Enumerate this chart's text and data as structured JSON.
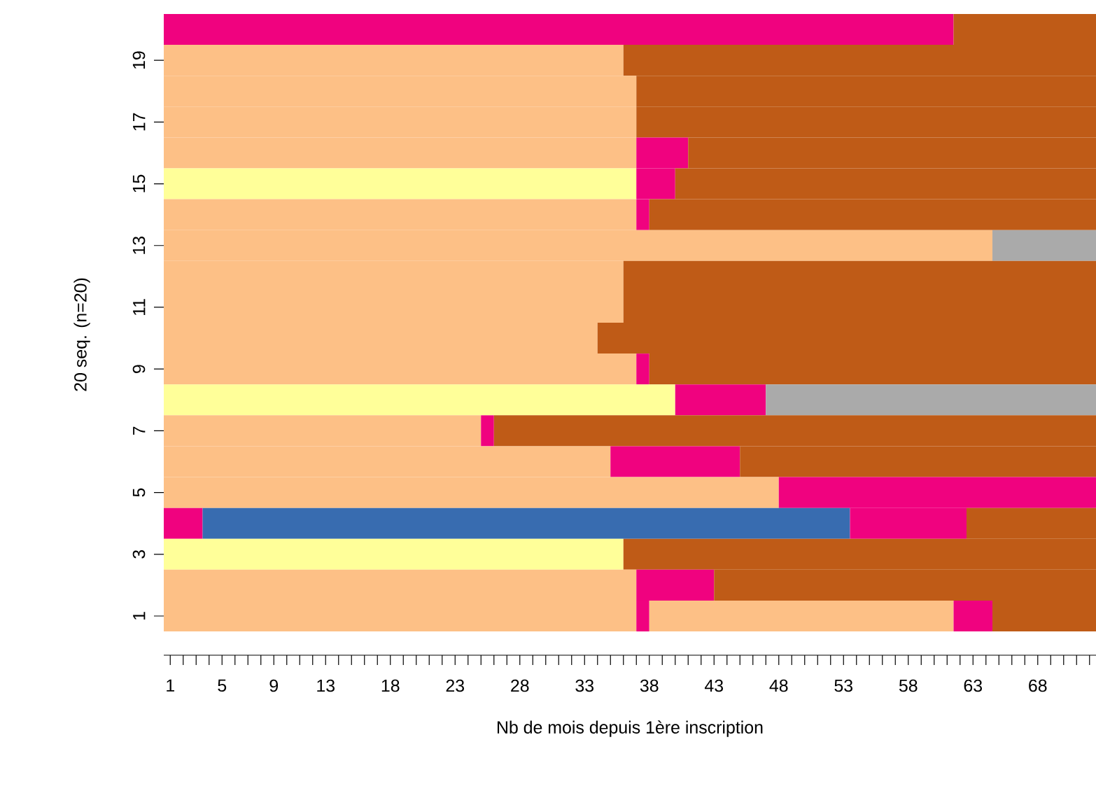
{
  "chart_data": {
    "type": "bar",
    "orientation": "horizontal",
    "stacked": true,
    "xlabel": "Nb de mois depuis 1ère inscription",
    "ylabel": "20 seq. (n=20)",
    "categories": [
      null,
      "19",
      null,
      "17",
      null,
      "15",
      null,
      "13",
      null,
      "11",
      null,
      "9",
      null,
      "7",
      null,
      "5",
      null,
      "3",
      null,
      "1"
    ],
    "xlim": [
      0,
      72
    ],
    "xticks": [
      {
        "value": 0.5,
        "label": "1"
      },
      {
        "value": 1.5,
        "label": null
      },
      {
        "value": 2.5,
        "label": null
      },
      {
        "value": 3.5,
        "label": null
      },
      {
        "value": 4.5,
        "label": "5"
      },
      {
        "value": 5.5,
        "label": null
      },
      {
        "value": 6.5,
        "label": null
      },
      {
        "value": 7.5,
        "label": null
      },
      {
        "value": 8.5,
        "label": "9"
      },
      {
        "value": 9.5,
        "label": null
      },
      {
        "value": 10.5,
        "label": null
      },
      {
        "value": 11.5,
        "label": null
      },
      {
        "value": 12.5,
        "label": "13"
      },
      {
        "value": 13.5,
        "label": null
      },
      {
        "value": 14.5,
        "label": null
      },
      {
        "value": 15.5,
        "label": null
      },
      {
        "value": 16.5,
        "label": null
      },
      {
        "value": 17.5,
        "label": "18"
      },
      {
        "value": 18.5,
        "label": null
      },
      {
        "value": 19.5,
        "label": null
      },
      {
        "value": 20.5,
        "label": null
      },
      {
        "value": 21.5,
        "label": null
      },
      {
        "value": 22.5,
        "label": "23"
      },
      {
        "value": 23.5,
        "label": null
      },
      {
        "value": 24.5,
        "label": null
      },
      {
        "value": 25.5,
        "label": null
      },
      {
        "value": 26.5,
        "label": null
      },
      {
        "value": 27.5,
        "label": "28"
      },
      {
        "value": 28.5,
        "label": null
      },
      {
        "value": 29.5,
        "label": null
      },
      {
        "value": 30.5,
        "label": null
      },
      {
        "value": 31.5,
        "label": null
      },
      {
        "value": 32.5,
        "label": "33"
      },
      {
        "value": 33.5,
        "label": null
      },
      {
        "value": 34.5,
        "label": null
      },
      {
        "value": 35.5,
        "label": null
      },
      {
        "value": 36.5,
        "label": null
      },
      {
        "value": 37.5,
        "label": "38"
      },
      {
        "value": 38.5,
        "label": null
      },
      {
        "value": 39.5,
        "label": null
      },
      {
        "value": 40.5,
        "label": null
      },
      {
        "value": 41.5,
        "label": null
      },
      {
        "value": 42.5,
        "label": "43"
      },
      {
        "value": 43.5,
        "label": null
      },
      {
        "value": 44.5,
        "label": null
      },
      {
        "value": 45.5,
        "label": null
      },
      {
        "value": 46.5,
        "label": null
      },
      {
        "value": 47.5,
        "label": "48"
      },
      {
        "value": 48.5,
        "label": null
      },
      {
        "value": 49.5,
        "label": null
      },
      {
        "value": 50.5,
        "label": null
      },
      {
        "value": 51.5,
        "label": null
      },
      {
        "value": 52.5,
        "label": "53"
      },
      {
        "value": 53.5,
        "label": null
      },
      {
        "value": 54.5,
        "label": null
      },
      {
        "value": 55.5,
        "label": null
      },
      {
        "value": 56.5,
        "label": null
      },
      {
        "value": 57.5,
        "label": "58"
      },
      {
        "value": 58.5,
        "label": null
      },
      {
        "value": 59.5,
        "label": null
      },
      {
        "value": 60.5,
        "label": null
      },
      {
        "value": 61.5,
        "label": null
      },
      {
        "value": 62.5,
        "label": "63"
      },
      {
        "value": 63.5,
        "label": null
      },
      {
        "value": 64.5,
        "label": null
      },
      {
        "value": 65.5,
        "label": null
      },
      {
        "value": 66.5,
        "label": null
      },
      {
        "value": 67.5,
        "label": "68"
      },
      {
        "value": 68.5,
        "label": null
      },
      {
        "value": 69.5,
        "label": null
      },
      {
        "value": 70.5,
        "label": null
      },
      {
        "value": 71.5,
        "label": null
      }
    ],
    "series": [
      {
        "values": [
          61,
          35.5,
          36.5,
          36.5,
          36.5,
          36.5,
          36.5,
          64,
          35.5,
          35.5,
          33.5,
          36.5,
          39.5,
          24.5,
          34.5,
          47.5,
          3,
          35.5,
          36.5,
          36.5
        ],
        "colors": [
          "#f0027f",
          "#fdc086",
          "#fdc086",
          "#fdc086",
          "#fdc086",
          "#ffff99",
          "#fdc086",
          "#fdc086",
          "#fdc086",
          "#fdc086",
          "#fdc086",
          "#fdc086",
          "#ffff99",
          "#fdc086",
          "#fdc086",
          "#fdc086",
          "#f0027f",
          "#ffff99",
          "#fdc086",
          "#fdc086"
        ]
      },
      {
        "values": [
          11,
          36.5,
          35.5,
          35.5,
          4,
          3,
          1,
          8,
          36.5,
          36.5,
          38.5,
          1,
          7,
          1,
          10,
          24.5,
          50,
          36.5,
          6,
          1
        ],
        "colors": [
          "#bf5b17",
          "#bf5b17",
          "#bf5b17",
          "#bf5b17",
          "#f0027f",
          "#f0027f",
          "#f0027f",
          "#aaaaaa",
          "#bf5b17",
          "#bf5b17",
          "#bf5b17",
          "#f0027f",
          "#f0027f",
          "#f0027f",
          "#f0027f",
          "#f0027f",
          "#386cb0",
          "#bf5b17",
          "#f0027f",
          "#f0027f"
        ]
      },
      {
        "values": [
          null,
          null,
          null,
          null,
          31.5,
          32.5,
          34.5,
          null,
          null,
          null,
          null,
          34.5,
          25.5,
          46.5,
          27.5,
          null,
          9,
          null,
          29.5,
          23.5
        ],
        "colors": [
          null,
          null,
          null,
          null,
          "#bf5b17",
          "#bf5b17",
          "#bf5b17",
          null,
          null,
          null,
          null,
          "#bf5b17",
          "#aaaaaa",
          "#bf5b17",
          "#bf5b17",
          null,
          "#f0027f",
          null,
          "#bf5b17",
          "#fdc086"
        ]
      },
      {
        "values": [
          null,
          null,
          null,
          null,
          null,
          null,
          null,
          null,
          null,
          null,
          null,
          null,
          null,
          null,
          null,
          null,
          10,
          null,
          null,
          3
        ],
        "colors": [
          null,
          null,
          null,
          null,
          null,
          null,
          null,
          null,
          null,
          null,
          null,
          null,
          null,
          null,
          null,
          null,
          "#bf5b17",
          null,
          null,
          "#f0027f"
        ]
      },
      {
        "values": [
          null,
          null,
          null,
          null,
          null,
          null,
          null,
          null,
          null,
          null,
          null,
          null,
          null,
          null,
          null,
          null,
          null,
          null,
          null,
          8
        ],
        "colors": [
          null,
          null,
          null,
          null,
          null,
          null,
          null,
          null,
          null,
          null,
          null,
          null,
          null,
          null,
          null,
          null,
          null,
          null,
          null,
          "#bf5b17"
        ]
      }
    ]
  }
}
